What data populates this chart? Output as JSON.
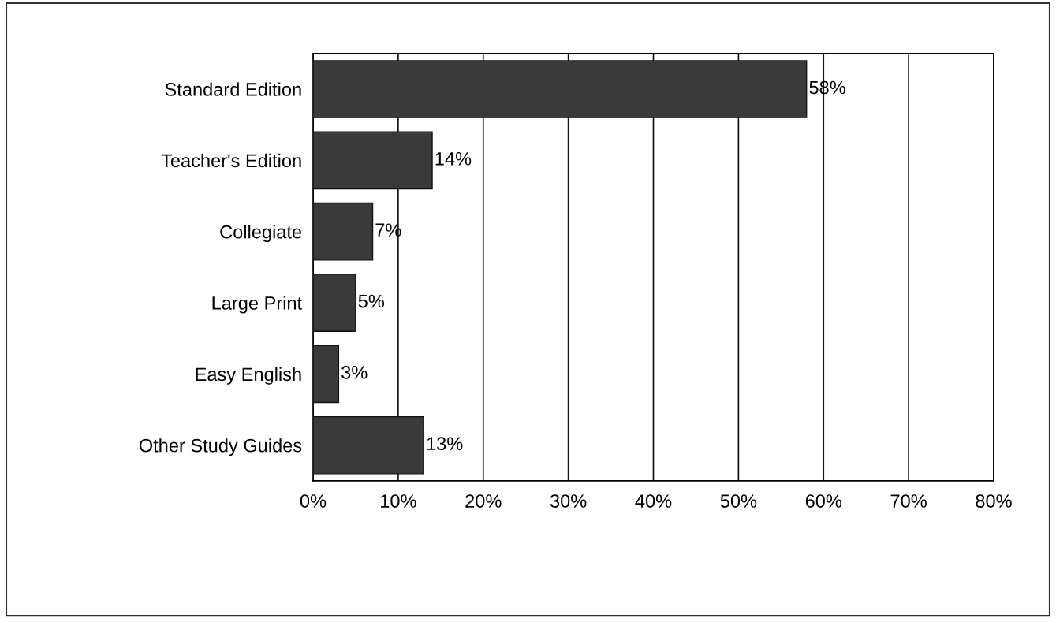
{
  "chart_data": {
    "type": "bar",
    "orientation": "horizontal",
    "categories": [
      "Standard Edition",
      "Teacher's Edition",
      "Collegiate",
      "Large Print",
      "Easy English",
      "Other Study Guides"
    ],
    "values": [
      58,
      14,
      7,
      5,
      3,
      13
    ],
    "value_labels": [
      "58%",
      "14%",
      "7%",
      "5%",
      "3%",
      "13%"
    ],
    "color": "#3a3a3a",
    "xlim": [
      0,
      80
    ],
    "xticks": [
      {
        "value": 0,
        "label": "0%"
      },
      {
        "value": 10,
        "label": "10%"
      },
      {
        "value": 20,
        "label": "20%"
      },
      {
        "value": 30,
        "label": "30%"
      },
      {
        "value": 40,
        "label": "40%"
      },
      {
        "value": 50,
        "label": "50%"
      },
      {
        "value": 60,
        "label": "60%"
      },
      {
        "value": 70,
        "label": "70%"
      },
      {
        "value": 80,
        "label": "80%"
      }
    ],
    "grid": "x"
  }
}
